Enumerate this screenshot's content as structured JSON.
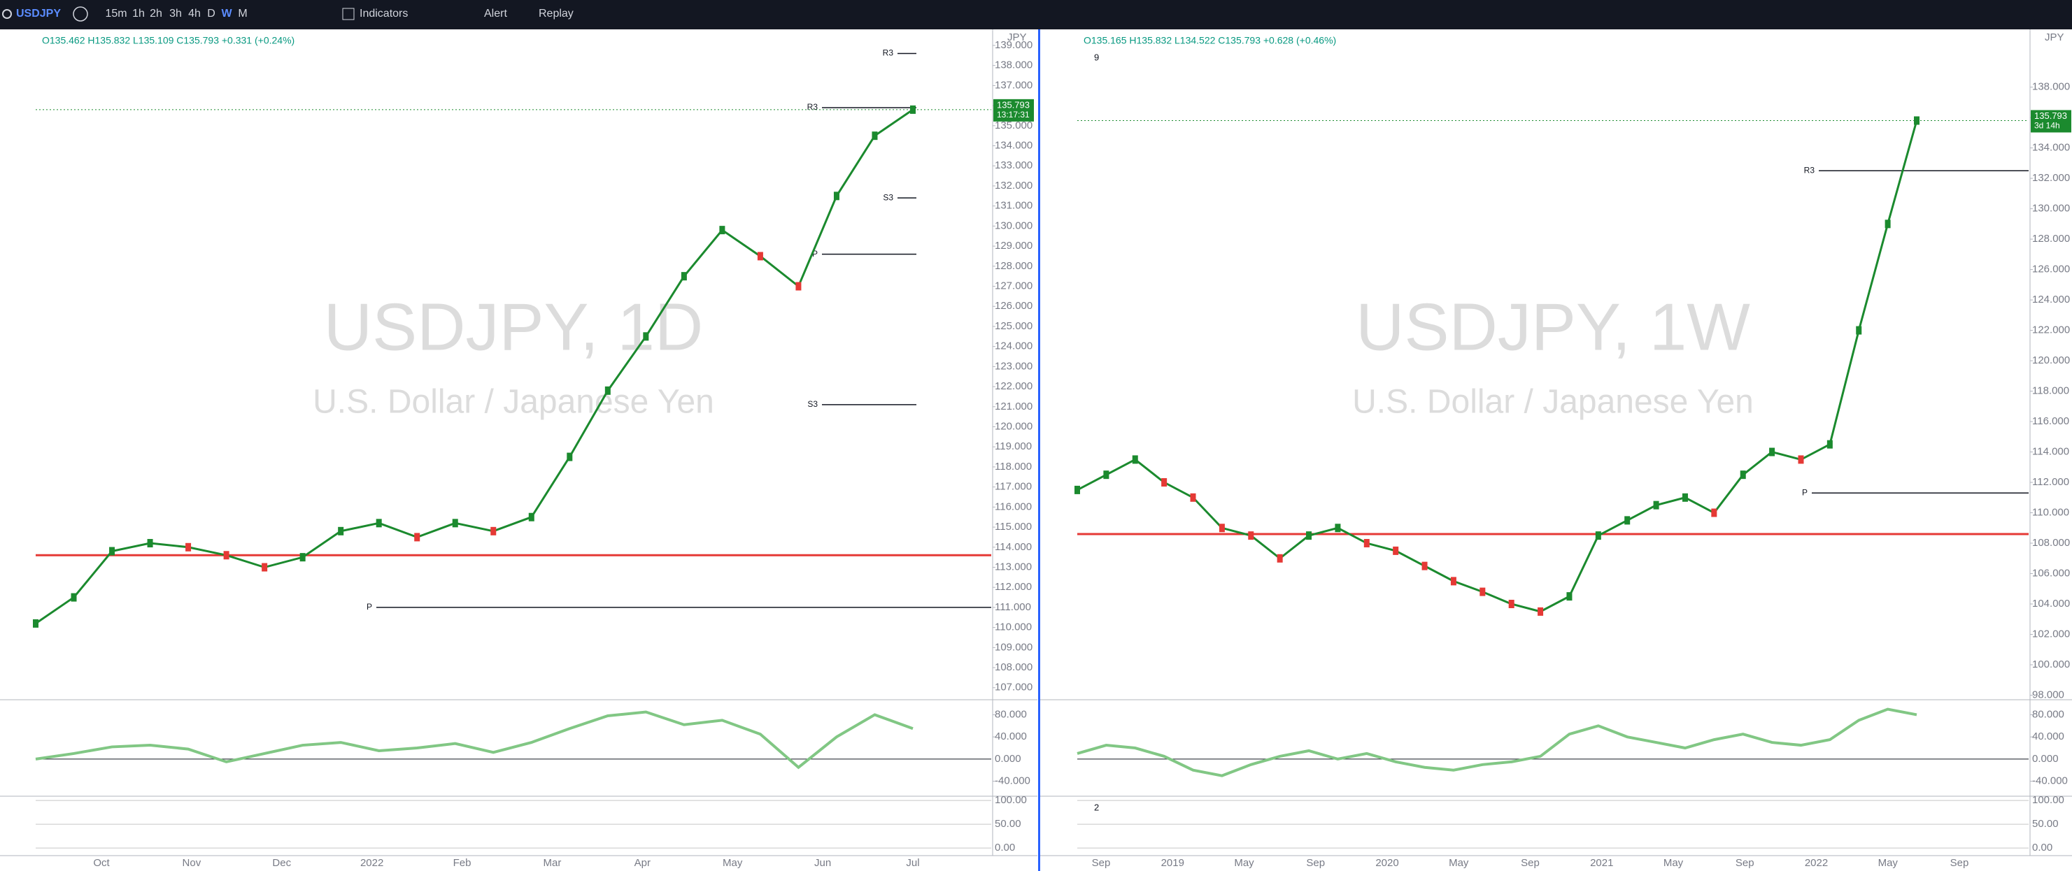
{
  "toolbar": {
    "symbol": "USDJPY",
    "intervals": [
      "15m",
      "1h",
      "2h",
      "3h",
      "4h",
      "D",
      "W",
      "M"
    ],
    "indicators": "Indicators",
    "alert": "Alert",
    "replay": "Replay"
  },
  "panels": [
    {
      "ohlc": "O135.462 H135.832 L135.109 C135.793 +0.331 (+0.24%)",
      "watermark": "USDJPY, 1D",
      "description": "U.S. Dollar / Japanese Yen",
      "currency": "JPY",
      "price_tag": "135.793",
      "countdown": "13:17:31",
      "ylim": [
        106.4,
        139.8
      ],
      "yticks": [
        {
          "value": 107,
          "label": "107.000"
        },
        {
          "value": 108,
          "label": "108.000"
        },
        {
          "value": 109,
          "label": "109.000"
        },
        {
          "value": 110,
          "label": "110.000"
        },
        {
          "value": 111,
          "label": "111.000"
        },
        {
          "value": 112,
          "label": "112.000"
        },
        {
          "value": 113,
          "label": "113.000"
        },
        {
          "value": 114,
          "label": "114.000"
        },
        {
          "value": 115,
          "label": "115.000"
        },
        {
          "value": 116,
          "label": "116.000"
        },
        {
          "value": 117,
          "label": "117.000"
        },
        {
          "value": 118,
          "label": "118.000"
        },
        {
          "value": 119,
          "label": "119.000"
        },
        {
          "value": 120,
          "label": "120.000"
        },
        {
          "value": 121,
          "label": "121.000"
        },
        {
          "value": 122,
          "label": "122.000"
        },
        {
          "value": 123,
          "label": "123.000"
        },
        {
          "value": 124,
          "label": "124.000"
        },
        {
          "value": 125,
          "label": "125.000"
        },
        {
          "value": 126,
          "label": "126.000"
        },
        {
          "value": 127,
          "label": "127.000"
        },
        {
          "value": 128,
          "label": "128.000"
        },
        {
          "value": 129,
          "label": "129.000"
        },
        {
          "value": 130,
          "label": "130.000"
        },
        {
          "value": 131,
          "label": "131.000"
        },
        {
          "value": 132,
          "label": "132.000"
        },
        {
          "value": 133,
          "label": "133.000"
        },
        {
          "value": 134,
          "label": "134.000"
        },
        {
          "value": 135,
          "label": "135.000"
        },
        {
          "value": 136,
          "label": "136.000"
        },
        {
          "value": 137,
          "label": "137.000"
        },
        {
          "value": 138,
          "label": "138.000"
        },
        {
          "value": 139,
          "label": "139.000"
        }
      ],
      "closes": [
        110.2,
        111.5,
        113.8,
        114.2,
        114.0,
        113.6,
        113.0,
        113.5,
        114.8,
        115.2,
        114.5,
        115.2,
        114.8,
        115.5,
        118.5,
        121.8,
        124.5,
        127.5,
        129.8,
        128.5,
        127.0,
        131.5,
        134.5,
        135.8
      ],
      "xlabels": [
        "Oct",
        "Nov",
        "Dec",
        "2022",
        "Feb",
        "Mar",
        "Apr",
        "May",
        "Jun",
        "Jul"
      ],
      "pivots": [
        {
          "label": "R3",
          "value": 138.6
        },
        {
          "label": "R3",
          "value": 135.9
        },
        {
          "label": "S3",
          "value": 131.4
        },
        {
          "label": "P",
          "value": 128.6
        },
        {
          "label": "S3",
          "value": 121.1
        },
        {
          "label": "P",
          "value": 111.0
        }
      ],
      "level": 113.6,
      "rsi": {
        "ylim": [
          -67,
          102
        ],
        "yticks": [
          {
            "value": 80,
            "label": "80.000"
          },
          {
            "value": 40,
            "label": "40.000"
          },
          {
            "value": 0,
            "label": "0.000"
          },
          {
            "value": -40,
            "label": "-40.000"
          }
        ],
        "values": [
          0,
          10,
          22,
          25,
          18,
          -5,
          10,
          25,
          30,
          15,
          20,
          28,
          12,
          30,
          55,
          78,
          85,
          62,
          70,
          45,
          -15,
          40,
          80,
          55
        ]
      },
      "stoch": {
        "ylim": [
          -16,
          106
        ],
        "yticks": [
          {
            "value": 100,
            "label": "100.00"
          },
          {
            "value": 50,
            "label": "50.00"
          },
          {
            "value": 0,
            "label": "0.00"
          }
        ]
      }
    },
    {
      "ohlc": "O135.165 H135.832 L134.522 C135.793 +0.628 (+0.46%)",
      "watermark": "USDJPY, 1W",
      "description": "U.S. Dollar / Japanese Yen",
      "currency": "JPY",
      "price_tag": "135.793",
      "countdown": "3d 14h",
      "pane_label": "9",
      "stoch_label": "2",
      "ylim": [
        97.7,
        141.8
      ],
      "yticks": [
        {
          "value": 98,
          "label": "98.000"
        },
        {
          "value": 100,
          "label": "100.000"
        },
        {
          "value": 102,
          "label": "102.000"
        },
        {
          "value": 104,
          "label": "104.000"
        },
        {
          "value": 106,
          "label": "106.000"
        },
        {
          "value": 108,
          "label": "108.000"
        },
        {
          "value": 110,
          "label": "110.000"
        },
        {
          "value": 112,
          "label": "112.000"
        },
        {
          "value": 114,
          "label": "114.000"
        },
        {
          "value": 116,
          "label": "116.000"
        },
        {
          "value": 118,
          "label": "118.000"
        },
        {
          "value": 120,
          "label": "120.000"
        },
        {
          "value": 122,
          "label": "122.000"
        },
        {
          "value": 124,
          "label": "124.000"
        },
        {
          "value": 126,
          "label": "126.000"
        },
        {
          "value": 128,
          "label": "128.000"
        },
        {
          "value": 130,
          "label": "130.000"
        },
        {
          "value": 132,
          "label": "132.000"
        },
        {
          "value": 134,
          "label": "134.000"
        },
        {
          "value": 136,
          "label": "136.000"
        },
        {
          "value": 138,
          "label": "138.000"
        }
      ],
      "closes": [
        111.5,
        112.5,
        113.5,
        112.0,
        111.0,
        109.0,
        108.5,
        107.0,
        108.5,
        109.0,
        108.0,
        107.5,
        106.5,
        105.5,
        104.8,
        104.0,
        103.5,
        104.5,
        108.5,
        109.5,
        110.5,
        111.0,
        110.0,
        112.5,
        114.0,
        113.5,
        114.5,
        122.0,
        129.0,
        135.8
      ],
      "xlabels": [
        "Sep",
        "2019",
        "May",
        "Sep",
        "2020",
        "May",
        "Sep",
        "2021",
        "May",
        "Sep",
        "2022",
        "May",
        "Sep"
      ],
      "pivots": [
        {
          "label": "R3",
          "value": 132.5
        },
        {
          "label": "P",
          "value": 111.3
        }
      ],
      "level": 108.6,
      "rsi": {
        "ylim": [
          -67,
          102
        ],
        "yticks": [
          {
            "value": 80,
            "label": "80.000"
          },
          {
            "value": 40,
            "label": "40.000"
          },
          {
            "value": 0,
            "label": "0.000"
          },
          {
            "value": -40,
            "label": "-40.000"
          }
        ],
        "values": [
          10,
          25,
          20,
          5,
          -20,
          -30,
          -10,
          5,
          15,
          0,
          10,
          -5,
          -15,
          -20,
          -10,
          -5,
          5,
          45,
          60,
          40,
          30,
          20,
          35,
          45,
          30,
          25,
          35,
          70,
          90,
          80
        ]
      },
      "stoch": {
        "ylim": [
          -16,
          106
        ],
        "yticks": [
          {
            "value": 100,
            "label": "100.00"
          },
          {
            "value": 50,
            "label": "50.00"
          },
          {
            "value": 0,
            "label": "0.00"
          }
        ]
      }
    }
  ]
}
